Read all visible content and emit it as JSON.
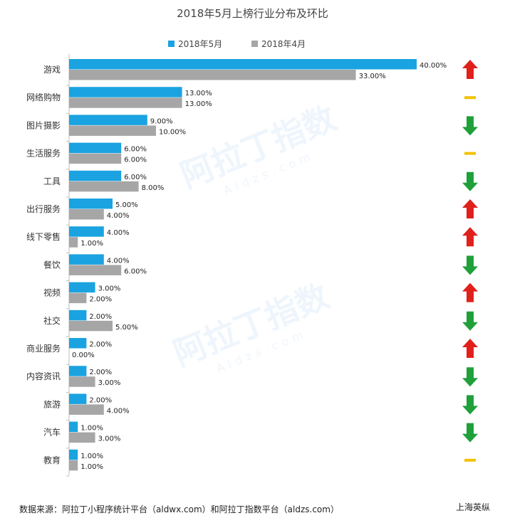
{
  "chart_data": {
    "type": "bar",
    "orientation": "horizontal",
    "title": "2018年5月上榜行业分布及环比",
    "categories": [
      "游戏",
      "网络购物",
      "图片摄影",
      "生活服务",
      "工具",
      "出行服务",
      "线下零售",
      "餐饮",
      "视频",
      "社交",
      "商业服务",
      "内容资讯",
      "旅游",
      "汽车",
      "教育"
    ],
    "series": [
      {
        "name": "2018年5月",
        "color": "#1aa3e0",
        "values": [
          40,
          13,
          9,
          6,
          6,
          5,
          4,
          4,
          3,
          2,
          2,
          2,
          2,
          1,
          1
        ]
      },
      {
        "name": "2018年4月",
        "color": "#a6a6a6",
        "values": [
          33,
          13,
          10,
          6,
          8,
          4,
          1,
          6,
          2,
          5,
          0,
          3,
          4,
          3,
          1
        ]
      }
    ],
    "value_labels": {
      "2018年5月": [
        "40.00%",
        "13.00%",
        "9.00%",
        "6.00%",
        "6.00%",
        "5.00%",
        "4.00%",
        "4.00%",
        "3.00%",
        "2.00%",
        "2.00%",
        "2.00%",
        "2.00%",
        "1.00%",
        "1.00%"
      ],
      "2018年4月": [
        "33.00%",
        "13.00%",
        "10.00%",
        "6.00%",
        "8.00%",
        "4.00%",
        "1.00%",
        "6.00%",
        "2.00%",
        "5.00%",
        "0.00%",
        "3.00%",
        "4.00%",
        "3.00%",
        "1.00%"
      ]
    },
    "trend": [
      "up",
      "flat",
      "down",
      "flat",
      "down",
      "up",
      "up",
      "down",
      "up",
      "down",
      "up",
      "down",
      "down",
      "down",
      "flat"
    ],
    "trend_colors": {
      "up": "#e0201b",
      "down": "#20a03a",
      "flat": "#f2c200"
    },
    "xlim": [
      0,
      40
    ],
    "grid": false,
    "legend_position": "top"
  },
  "watermark": {
    "text": "阿拉丁指数",
    "sub": "Aldzs.com"
  },
  "footer": {
    "source": "数据来源：阿拉丁小程序统计平台（aldwx.com）和阿拉丁指数平台（aldzs.com）",
    "credit": "上海英纵"
  }
}
